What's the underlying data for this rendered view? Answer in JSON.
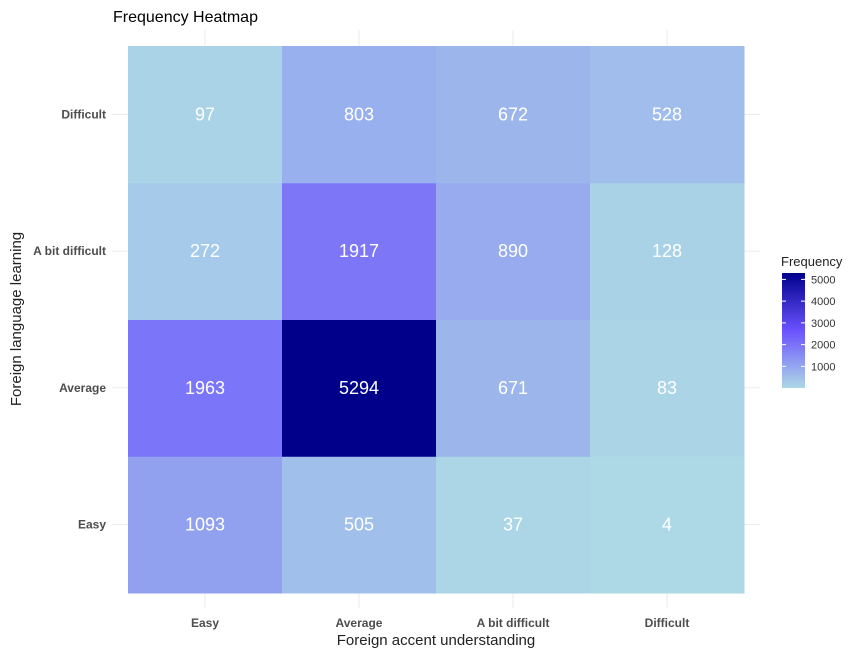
{
  "chart_data": {
    "type": "heatmap",
    "title": "Frequency Heatmap",
    "xlabel": "Foreign accent understanding",
    "ylabel": "Foreign language learning",
    "x_categories": [
      "Easy",
      "Average",
      "A bit difficult",
      "Difficult"
    ],
    "y_categories": [
      "Easy",
      "Average",
      "A bit difficult",
      "Difficult"
    ],
    "values": [
      [
        1093,
        505,
        37,
        4
      ],
      [
        1963,
        5294,
        671,
        83
      ],
      [
        272,
        1917,
        890,
        128
      ],
      [
        97,
        803,
        672,
        528
      ]
    ],
    "legend": {
      "title": "Frequency",
      "ticks": [
        1000,
        2000,
        3000,
        4000,
        5000
      ],
      "range": [
        4,
        5294
      ],
      "placement": "right"
    },
    "color_scale": {
      "low": "#add8e6",
      "mid": "#6a52ff",
      "high": "#00008b"
    },
    "grid": true
  }
}
